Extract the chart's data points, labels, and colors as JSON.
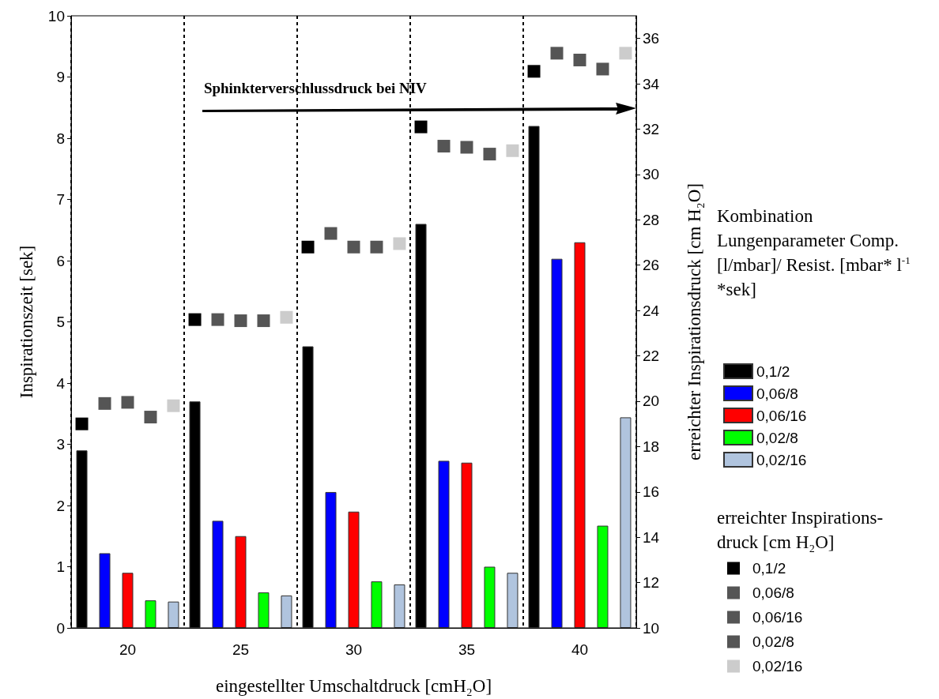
{
  "chart_data": {
    "type": "bar",
    "xlabel": "eingestellter Umschaltdruck [cmH₂O]",
    "ylabel": "Inspirationszeit [sek]",
    "y2label": "erreichter Inspirationsdruck [cm H₂O]",
    "legend_title": "Kombination Lungenparameter Comp. [l/mbar]/ Resist. [mbar* l$^{-1}$ *sek]",
    "annotations": [
      "Sphinkterverschlussdruck bei NIV",
      "erreichter Inspirations-druck [cm H₂O]"
    ],
    "categories": [
      "20",
      "25",
      "30",
      "35",
      "40"
    ],
    "series": [
      {
        "name": "0,1/2",
        "color": "#000000",
        "values": [
          2.9,
          3.7,
          4.6,
          6.6,
          8.2
        ]
      },
      {
        "name": "0,06/8",
        "color": "#0000ff",
        "values": [
          1.22,
          1.75,
          2.22,
          2.73,
          6.03
        ]
      },
      {
        "name": "0,06/16",
        "color": "#ff0000",
        "values": [
          0.9,
          1.5,
          1.9,
          2.7,
          6.3
        ]
      },
      {
        "name": "0,02/8",
        "color": "#00ff00",
        "values": [
          0.45,
          0.58,
          0.76,
          1.0,
          1.67
        ]
      },
      {
        "name": "0,02/16",
        "color": "#b0c4de",
        "values": [
          0.43,
          0.53,
          0.71,
          0.9,
          3.44
        ]
      },
      {
        "name": "0,1/2",
        "type": "scatter",
        "axis": "y2",
        "color": "#000000",
        "x": [
          "20",
          "25",
          "30",
          "35",
          "40"
        ],
        "values": [
          19.0,
          23.6,
          26.8,
          32.1,
          34.55
        ]
      },
      {
        "name": "0,06/8",
        "type": "scatter",
        "axis": "y2",
        "color": "#555555",
        "x": [
          "20",
          "25",
          "30",
          "35",
          "40"
        ],
        "values": [
          19.9,
          23.6,
          27.4,
          31.25,
          35.35
        ]
      },
      {
        "name": "0,06/16",
        "type": "scatter",
        "axis": "y2",
        "color": "#555555",
        "x": [
          "20",
          "25",
          "30",
          "35",
          "40"
        ],
        "values": [
          19.95,
          23.55,
          26.8,
          31.2,
          35.05
        ]
      },
      {
        "name": "0,02/8",
        "type": "scatter",
        "axis": "y2",
        "color": "#555555",
        "x": [
          "20",
          "25",
          "30",
          "35",
          "40"
        ],
        "values": [
          19.3,
          23.55,
          26.8,
          30.9,
          34.65
        ]
      },
      {
        "name": "0,02/16",
        "type": "scatter",
        "axis": "y2",
        "color": "#cccccc",
        "x": [
          "20",
          "25",
          "30",
          "35",
          "40"
        ],
        "values": [
          19.8,
          23.7,
          26.95,
          31.05,
          35.35
        ]
      }
    ],
    "ylim": [
      0,
      10
    ],
    "yticks": [
      0,
      1,
      2,
      3,
      4,
      5,
      6,
      7,
      8,
      9,
      10
    ],
    "y2lim": [
      10,
      37
    ],
    "y2ticks": [
      10,
      12,
      14,
      16,
      18,
      20,
      22,
      24,
      26,
      28,
      30,
      32,
      34,
      36
    ],
    "grid": "x",
    "legend": "right",
    "marker": "square"
  }
}
